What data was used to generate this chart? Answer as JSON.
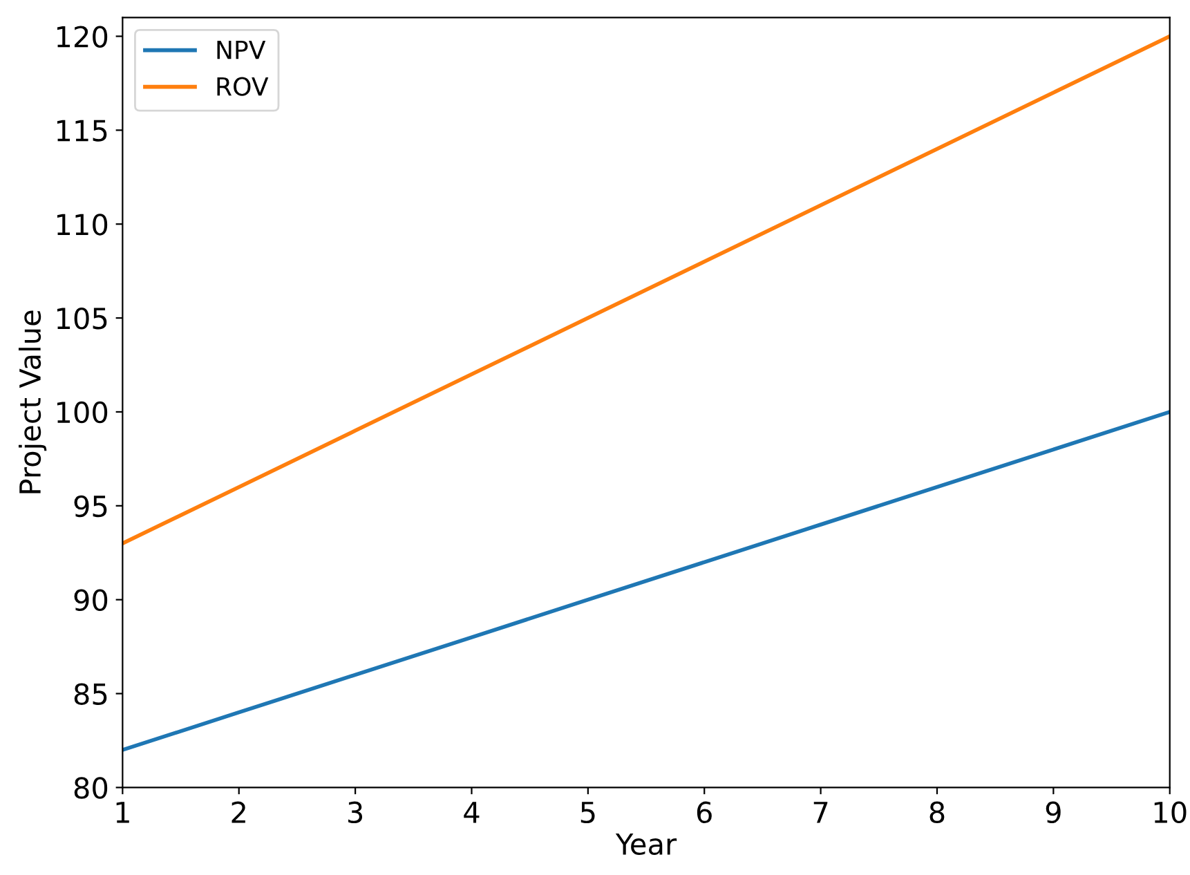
{
  "chart_data": {
    "type": "line",
    "xlabel": "Year",
    "ylabel": "Project Value",
    "x": [
      1,
      2,
      3,
      4,
      5,
      6,
      7,
      8,
      9,
      10
    ],
    "series": [
      {
        "name": "NPV",
        "color": "#1f77b4",
        "values": [
          82,
          84,
          86,
          88,
          90,
          92,
          94,
          96,
          98,
          100
        ]
      },
      {
        "name": "ROV",
        "color": "#ff7f0e",
        "values": [
          93,
          96,
          99,
          102,
          105,
          108,
          111,
          114,
          117,
          120
        ]
      }
    ],
    "xlim": [
      1,
      10
    ],
    "ylim": [
      80,
      121
    ],
    "xticks": [
      1,
      2,
      3,
      4,
      5,
      6,
      7,
      8,
      9,
      10
    ],
    "yticks": [
      80,
      85,
      90,
      95,
      100,
      105,
      110,
      115,
      120
    ],
    "legend": "top left",
    "grid": false
  }
}
